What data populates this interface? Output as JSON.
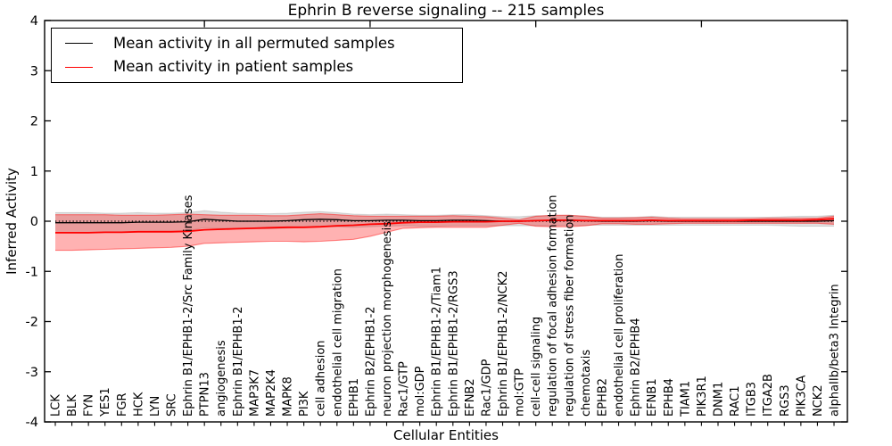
{
  "title": "Ephrin B reverse signaling -- 215 samples",
  "ylabel": "Inferred Activity",
  "xlabel": "Cellular Entities",
  "legend": {
    "items": [
      {
        "label": "Mean activity in all permuted samples",
        "color": "#000000"
      },
      {
        "label": "Mean activity in patient samples",
        "color": "#ff0000"
      }
    ]
  },
  "colors": {
    "frame": "#000000",
    "zero_line": "#000000",
    "permuted_line": "#000000",
    "patient_line": "#ff0000",
    "permuted_band": "#999999",
    "patient_band": "#ff0000",
    "background": "#ffffff"
  },
  "chart_data": {
    "type": "line",
    "title": "Ephrin B reverse signaling -- 215 samples",
    "xlabel": "Cellular Entities",
    "ylabel": "Inferred Activity",
    "ylim": [
      -4,
      4
    ],
    "yticks": [
      4,
      3,
      2,
      1,
      0,
      -1,
      -2,
      -3,
      -4
    ],
    "x_major_tick_indices": [
      9,
      19,
      29,
      39
    ],
    "grid": false,
    "legend_position": "upper left",
    "zero_reference_line": 0,
    "categories": [
      "LCK",
      "BLK",
      "FYN",
      "YES1",
      "FGR",
      "HCK",
      "LYN",
      "SRC",
      "Ephrin B1/EPHB1-2/Src Family Kinases",
      "PTPN13",
      "angiogenesis",
      "Ephrin B1/EPHB1-2",
      "MAP3K7",
      "MAP2K4",
      "MAPK8",
      "PI3K",
      "cell adhesion",
      "endothelial cell migration",
      "EPHB1",
      "Ephrin B2/EPHB1-2",
      "neuron projection morphogenesis",
      "Rac1/GTP",
      "mol:GDP",
      "Ephrin B1/EPHB1-2/Tiam1",
      "Ephrin B1/EPHB1-2/RGS3",
      "EFNB2",
      "Rac1/GDP",
      "Ephrin B1/EPHB1-2/NCK2",
      "mol:GTP",
      "cell-cell signaling",
      "regulation of focal adhesion formation",
      "regulation of stress fiber formation",
      "chemotaxis",
      "EPHB2",
      "endothelial cell proliferation",
      "Ephrin B2/EPHB4",
      "EFNB1",
      "EPHB4",
      "TIAM1",
      "PIK3R1",
      "DNM1",
      "RAC1",
      "ITGB3",
      "ITGA2B",
      "RGS3",
      "PIK3CA",
      "NCK2",
      "alphaIIb/beta3 Integrin"
    ],
    "series": [
      {
        "name": "Mean activity in all permuted samples",
        "color": "#000000",
        "width": 1.3,
        "values": [
          -0.03,
          -0.03,
          -0.03,
          -0.03,
          -0.03,
          -0.02,
          -0.02,
          -0.02,
          -0.01,
          0.04,
          0.02,
          0.0,
          0.0,
          0.0,
          0.01,
          0.03,
          0.04,
          0.03,
          0.01,
          0.01,
          0.02,
          0.02,
          0.01,
          0.01,
          0.02,
          0.02,
          0.01,
          0.0,
          0.0,
          0.01,
          0.01,
          0.02,
          0.01,
          0.0,
          0.0,
          0.0,
          0.01,
          0.0,
          0.0,
          0.0,
          0.0,
          0.0,
          0.0,
          0.0,
          0.0,
          0.0,
          0.0,
          0.01
        ]
      },
      {
        "name": "Mean activity in patient samples",
        "color": "#ff0000",
        "width": 1.8,
        "values": [
          -0.23,
          -0.23,
          -0.23,
          -0.22,
          -0.22,
          -0.21,
          -0.21,
          -0.21,
          -0.2,
          -0.17,
          -0.16,
          -0.15,
          -0.14,
          -0.13,
          -0.12,
          -0.12,
          -0.11,
          -0.09,
          -0.08,
          -0.06,
          -0.05,
          -0.03,
          -0.02,
          -0.02,
          -0.01,
          -0.01,
          -0.01,
          0.0,
          0.0,
          0.01,
          0.02,
          0.02,
          0.01,
          0.01,
          0.01,
          0.01,
          0.02,
          0.01,
          0.01,
          0.01,
          0.01,
          0.01,
          0.02,
          0.02,
          0.02,
          0.02,
          0.03,
          0.05
        ]
      }
    ],
    "bands": [
      {
        "name": "permuted-std-band",
        "color": "#999999",
        "fill_opacity": 0.3,
        "edge_color": "#000000",
        "edge_opacity": 0.12,
        "upper": [
          0.17,
          0.17,
          0.17,
          0.16,
          0.16,
          0.17,
          0.16,
          0.16,
          0.17,
          0.21,
          0.18,
          0.16,
          0.15,
          0.15,
          0.16,
          0.18,
          0.19,
          0.17,
          0.14,
          0.13,
          0.14,
          0.13,
          0.12,
          0.12,
          0.13,
          0.13,
          0.11,
          0.09,
          0.09,
          0.11,
          0.11,
          0.12,
          0.1,
          0.08,
          0.08,
          0.08,
          0.1,
          0.08,
          0.08,
          0.08,
          0.08,
          0.08,
          0.08,
          0.08,
          0.09,
          0.1,
          0.1,
          0.12
        ],
        "lower": [
          -0.23,
          -0.23,
          -0.23,
          -0.22,
          -0.22,
          -0.21,
          -0.2,
          -0.2,
          -0.19,
          -0.13,
          -0.14,
          -0.16,
          -0.15,
          -0.15,
          -0.14,
          -0.12,
          -0.11,
          -0.11,
          -0.12,
          -0.11,
          -0.1,
          -0.09,
          -0.1,
          -0.1,
          -0.09,
          -0.09,
          -0.09,
          -0.09,
          -0.09,
          -0.09,
          -0.09,
          -0.08,
          -0.08,
          -0.08,
          -0.08,
          -0.08,
          -0.08,
          -0.08,
          -0.08,
          -0.08,
          -0.08,
          -0.08,
          -0.08,
          -0.08,
          -0.09,
          -0.1,
          -0.1,
          -0.1
        ]
      },
      {
        "name": "patient-std-band",
        "color": "#ff0000",
        "fill_opacity": 0.3,
        "edge_color": "#ff0000",
        "edge_opacity": 0.45,
        "upper": [
          0.13,
          0.13,
          0.13,
          0.13,
          0.12,
          0.12,
          0.12,
          0.13,
          0.14,
          0.13,
          0.12,
          0.12,
          0.12,
          0.11,
          0.11,
          0.13,
          0.15,
          0.13,
          0.11,
          0.1,
          0.1,
          0.1,
          0.1,
          0.1,
          0.11,
          0.1,
          0.09,
          0.06,
          0.03,
          0.1,
          0.12,
          0.12,
          0.1,
          0.06,
          0.06,
          0.07,
          0.08,
          0.06,
          0.05,
          0.05,
          0.05,
          0.05,
          0.05,
          0.06,
          0.06,
          0.06,
          0.06,
          0.1
        ],
        "lower": [
          -0.58,
          -0.58,
          -0.57,
          -0.56,
          -0.55,
          -0.54,
          -0.53,
          -0.52,
          -0.5,
          -0.44,
          -0.43,
          -0.42,
          -0.41,
          -0.4,
          -0.4,
          -0.41,
          -0.4,
          -0.38,
          -0.36,
          -0.3,
          -0.22,
          -0.14,
          -0.13,
          -0.12,
          -0.12,
          -0.12,
          -0.12,
          -0.08,
          -0.04,
          -0.1,
          -0.11,
          -0.11,
          -0.09,
          -0.05,
          -0.05,
          -0.06,
          -0.06,
          -0.05,
          -0.04,
          -0.04,
          -0.04,
          -0.04,
          -0.04,
          -0.04,
          -0.04,
          -0.04,
          -0.04,
          -0.06
        ]
      }
    ]
  }
}
